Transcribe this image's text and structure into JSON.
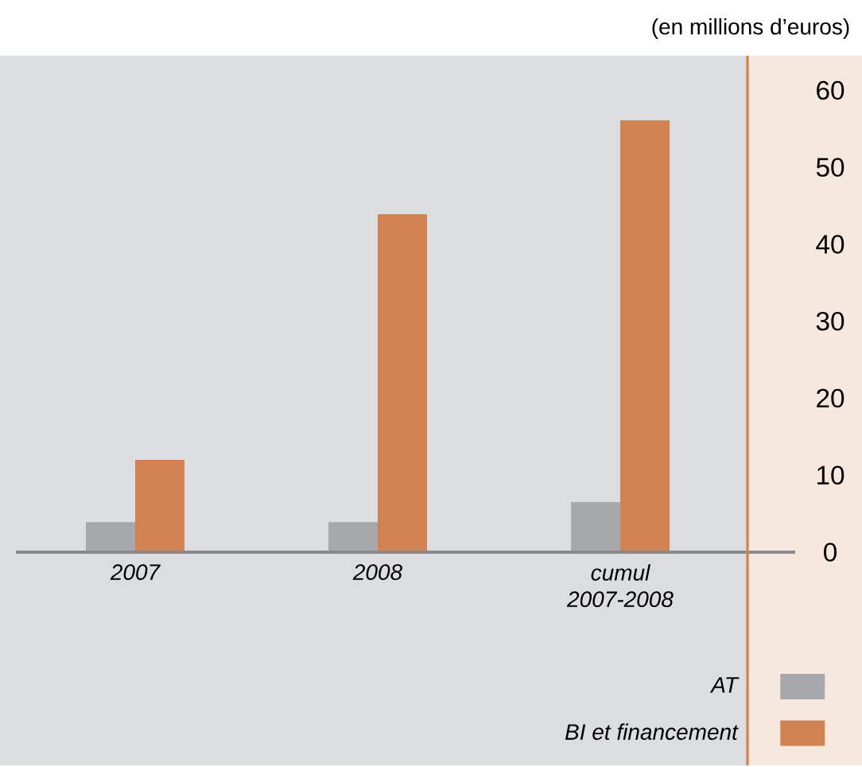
{
  "chart_data": {
    "type": "bar",
    "ylabel": "(en millions d’euros)",
    "categories": [
      "2007",
      "2008",
      "cumul 2007-2008"
    ],
    "series": [
      {
        "name": "AT",
        "color": "#a7a8ab",
        "values": [
          3.9,
          3.9,
          6.5
        ]
      },
      {
        "name": "BI et financement",
        "color": "#d08350",
        "values": [
          12,
          43.9,
          56.1
        ]
      }
    ],
    "ylim": [
      0,
      64.5
    ],
    "yticks": [
      0,
      10,
      20,
      30,
      40,
      50,
      60
    ],
    "grid": false,
    "legend": "bottom right"
  }
}
